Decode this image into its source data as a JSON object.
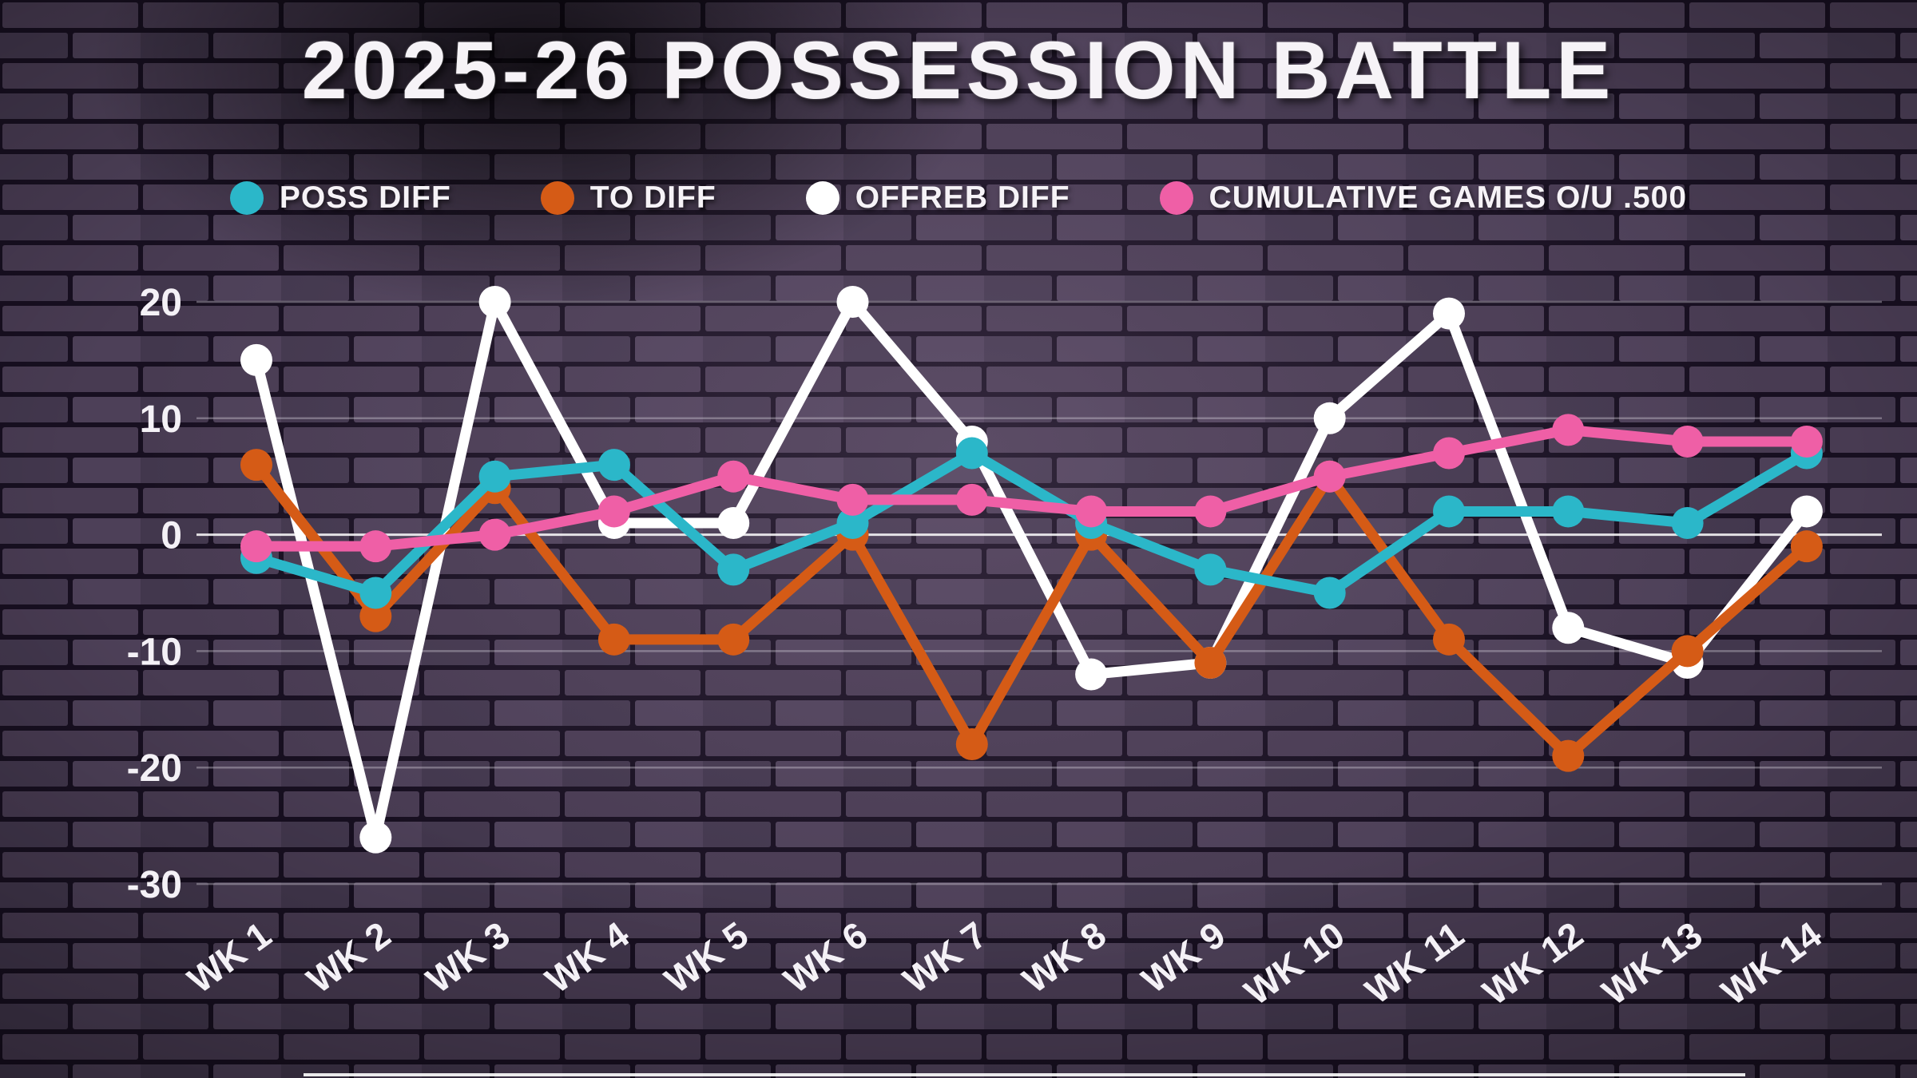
{
  "chart_data": {
    "type": "line",
    "title": "2025-26 POSSESSION BATTLE",
    "x": [
      "WK 1",
      "WK 2",
      "WK 3",
      "WK 4",
      "WK 5",
      "WK 6",
      "WK 7",
      "WK 8",
      "WK 9",
      "WK 10",
      "WK 11",
      "WK 12",
      "WK 13",
      "WK 14"
    ],
    "y_ticks": [
      20,
      10,
      0,
      -10,
      -20,
      -30
    ],
    "ylim": [
      -30,
      20
    ],
    "grid": true,
    "legend_position": "top",
    "series": [
      {
        "name": "POSS DIFF",
        "color": "#2bb7c9",
        "values": [
          -2,
          -5,
          5,
          6,
          -3,
          1,
          7,
          1,
          -3,
          -5,
          2,
          2,
          1,
          7
        ]
      },
      {
        "name": "TO DIFF",
        "color": "#d55b16",
        "values": [
          6,
          -7,
          4,
          -9,
          -9,
          0,
          -18,
          0,
          -11,
          5,
          -9,
          -19,
          -10,
          -1
        ]
      },
      {
        "name": "OFFREB DIFF",
        "color": "#ffffff",
        "values": [
          15,
          -26,
          20,
          1,
          1,
          20,
          8,
          -12,
          -11,
          10,
          19,
          -8,
          -11,
          2
        ]
      },
      {
        "name": "CUMULATIVE GAMES O/U .500",
        "color": "#ef5fa6",
        "values": [
          -1,
          -1,
          0,
          2,
          5,
          3,
          3,
          2,
          2,
          5,
          7,
          9,
          8,
          8
        ]
      }
    ],
    "draw_order": [
      2,
      1,
      0,
      3
    ]
  }
}
